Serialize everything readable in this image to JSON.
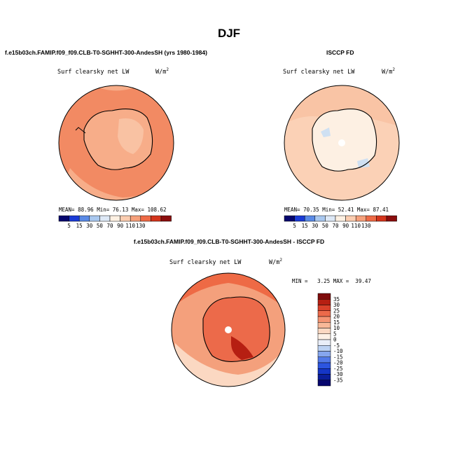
{
  "figure_title": "DJF",
  "left_panel": {
    "title": "f.e15b03ch.FAMIP.f09_f09.CLB-T0-SGHHT-300-AndesSH (yrs 1980-1984)",
    "variable": "Surf clearsky net LW",
    "units_base": "W/m",
    "units_exp": "2",
    "mean_label": "MEAN=",
    "mean": "88.96",
    "min_label": "Min=",
    "min": "76.13",
    "max_label": "Max=",
    "max": "108.62"
  },
  "right_panel": {
    "title": "ISCCP FD",
    "variable": "Surf clearsky net LW",
    "units_base": "W/m",
    "units_exp": "2",
    "mean_label": "MEAN=",
    "mean": "70.35",
    "min_label": "Min=",
    "min": "52.41",
    "max_label": "Max=",
    "max": "87.41"
  },
  "diff_panel": {
    "title": "f.e15b03ch.FAMIP.f09_f09.CLB-T0-SGHHT-300-AndesSH - ISCCP FD",
    "variable": "Surf clearsky net LW",
    "units_base": "W/m",
    "units_exp": "2",
    "minmax_text": "MIN =   3.25 MAX =  39.47"
  },
  "chart_data": [
    {
      "type": "heatmap",
      "projection": "south-polar-stereographic",
      "title": "Surf clearsky net LW (model)",
      "units": "W/m2",
      "colorbar_orientation": "horizontal",
      "levels": [
        5,
        15,
        30,
        50,
        70,
        90,
        110,
        130
      ],
      "colors": [
        "#06066e",
        "#1a3bd6",
        "#5a8ae6",
        "#a9c8ef",
        "#dde8f6",
        "#fdf0e2",
        "#fbcdb0",
        "#f6a07b",
        "#ee6a45",
        "#d4341c",
        "#8b0d0d"
      ],
      "mean": 88.96,
      "min": 76.13,
      "max": 108.62
    },
    {
      "type": "heatmap",
      "projection": "south-polar-stereographic",
      "title": "Surf clearsky net LW (ISCCP FD)",
      "units": "W/m2",
      "colorbar_orientation": "horizontal",
      "levels": [
        5,
        15,
        30,
        50,
        70,
        90,
        110,
        130
      ],
      "colors": [
        "#06066e",
        "#1a3bd6",
        "#5a8ae6",
        "#a9c8ef",
        "#dde8f6",
        "#fdf0e2",
        "#fbcdb0",
        "#f6a07b",
        "#ee6a45",
        "#d4341c",
        "#8b0d0d"
      ],
      "mean": 70.35,
      "min": 52.41,
      "max": 87.41
    },
    {
      "type": "heatmap",
      "projection": "south-polar-stereographic",
      "title": "Surf clearsky net LW (model - ISCCP FD)",
      "units": "W/m2",
      "colorbar_orientation": "vertical",
      "levels": [
        -35,
        -30,
        -25,
        -20,
        -15,
        -10,
        -5,
        0,
        5,
        10,
        15,
        20,
        25,
        30,
        35
      ],
      "level_labels": [
        "-35",
        "-30",
        "-25",
        "-20",
        "-15",
        "-10",
        "-5",
        "0",
        "5",
        "10",
        "15",
        "20",
        "25",
        "30",
        "35"
      ],
      "colors": [
        "#06066e",
        "#0b1e9a",
        "#1536c6",
        "#2c55df",
        "#5279e8",
        "#86a6ee",
        "#bcd2f3",
        "#e9eef8",
        "#fdf1e6",
        "#fbd8c2",
        "#f8b898",
        "#f49473",
        "#ec6a4a",
        "#d9412a",
        "#b61f12",
        "#7e0b0b"
      ],
      "min": 3.25,
      "max": 39.47
    }
  ]
}
